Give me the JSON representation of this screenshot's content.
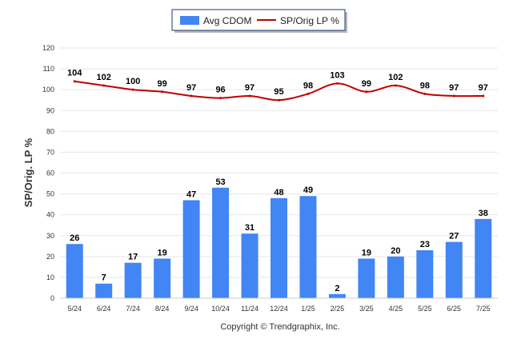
{
  "chart_data": {
    "type": "bar",
    "categories": [
      "5/24",
      "6/24",
      "7/24",
      "8/24",
      "9/24",
      "10/24",
      "11/24",
      "12/24",
      "1/25",
      "2/25",
      "3/25",
      "4/25",
      "5/25",
      "6/25",
      "7/25"
    ],
    "series": [
      {
        "name": "Avg CDOM",
        "type": "bar",
        "color": "#4285f4",
        "values": [
          26,
          7,
          17,
          19,
          47,
          53,
          31,
          48,
          49,
          2,
          19,
          20,
          23,
          27,
          38
        ]
      },
      {
        "name": "SP/Orig LP %",
        "type": "line",
        "color": "#c00000",
        "values": [
          104,
          102,
          100,
          99,
          97,
          96,
          97,
          95,
          98,
          103,
          99,
          102,
          98,
          97,
          97
        ]
      }
    ],
    "ylabel": "SP/Orig. LP %",
    "yticks": [
      0,
      10,
      20,
      30,
      40,
      50,
      60,
      70,
      80,
      90,
      100,
      110,
      120
    ],
    "ylim": [
      0,
      120
    ],
    "grid": true,
    "legend": "top-center"
  },
  "footer": {
    "copyright": "Copyright © Trendgraphix, Inc."
  }
}
